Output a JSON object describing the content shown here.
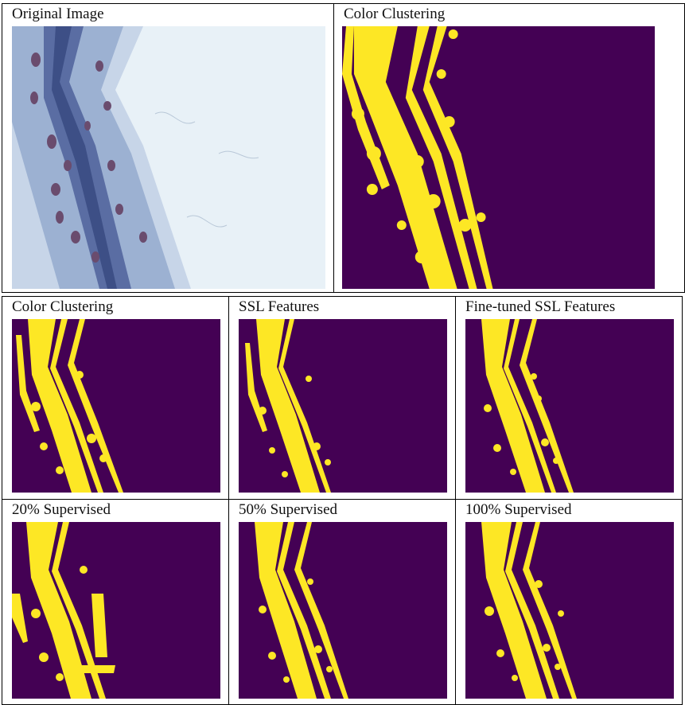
{
  "colors": {
    "background_purple": "#440154",
    "foreground_yellow": "#fde725",
    "microscope_bg": "#e8f1f7",
    "tissue_blue": "#9cb1d2",
    "tissue_dark": "#3d4f86",
    "nucleus": "#6a4c6e"
  },
  "top_row": {
    "original_label": "Original Image",
    "clustering_label": "Color Clustering"
  },
  "grid": {
    "row1": [
      {
        "label": "Color Clustering"
      },
      {
        "label": "SSL Features"
      },
      {
        "label": "Fine-tuned SSL Features"
      }
    ],
    "row2": [
      {
        "label": "20% Supervised"
      },
      {
        "label": "50% Supervised"
      },
      {
        "label": "100% Supervised"
      }
    ]
  }
}
